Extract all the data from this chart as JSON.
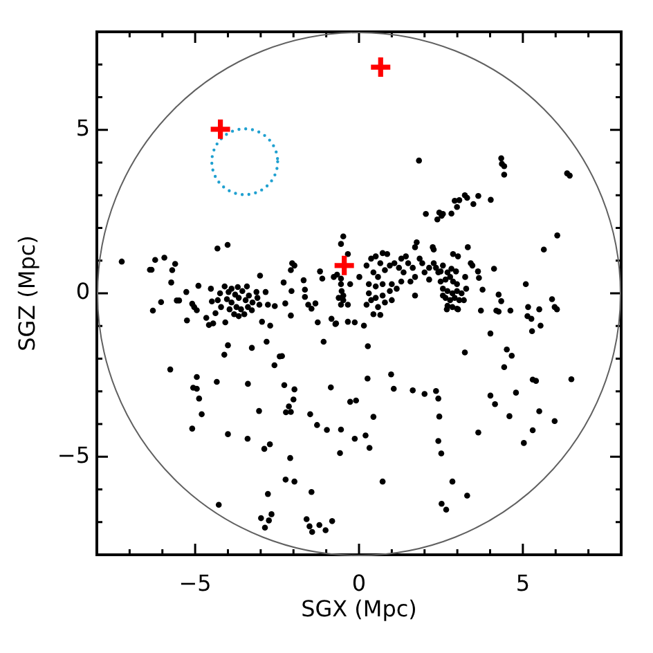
{
  "chart_data": {
    "type": "scatter",
    "xlabel": "SGX (Mpc)",
    "ylabel": "SGZ (Mpc)",
    "xlim": [
      -8,
      8
    ],
    "ylim": [
      -8,
      8
    ],
    "xticks": [
      {
        "value": -7,
        "label": null
      },
      {
        "value": -6,
        "label": null
      },
      -5,
      {
        "value": -4,
        "label": null
      },
      {
        "value": -3,
        "label": null
      },
      {
        "value": -2,
        "label": null
      },
      {
        "value": -1,
        "label": null
      },
      0,
      {
        "value": 1,
        "label": null
      },
      {
        "value": 2,
        "label": null
      },
      {
        "value": 3,
        "label": null
      },
      {
        "value": 4,
        "label": null
      },
      5,
      {
        "value": 6,
        "label": null
      },
      {
        "value": 7,
        "label": null
      }
    ],
    "yticks": [
      {
        "value": -7,
        "label": null
      },
      {
        "value": -6,
        "label": null
      },
      -5,
      {
        "value": -4,
        "label": null
      },
      {
        "value": -3,
        "label": null
      },
      {
        "value": -2,
        "label": null
      },
      {
        "value": -1,
        "label": null
      },
      0,
      {
        "value": 1,
        "label": null
      },
      {
        "value": 2,
        "label": null
      },
      {
        "value": 3,
        "label": null
      },
      {
        "value": 4,
        "label": null
      },
      5,
      {
        "value": 6,
        "label": null
      },
      {
        "value": 7,
        "label": null
      }
    ],
    "grid": false,
    "series": [
      {
        "type": "scatter",
        "color": "#000000",
        "marker": "circle",
        "x": [
          -7.24,
          -6.38,
          -6.33,
          -6.22,
          -5.94,
          -5.61,
          -5.7,
          -5.73,
          -6.29,
          -6.04,
          -5.56,
          -5.49,
          -5.25,
          -5.27,
          -4.9,
          -5.09,
          -5.03,
          -4.95,
          -4.66,
          -4.58,
          -4.45,
          -4.49,
          -4.52,
          -4.38,
          -4.32,
          -4.01,
          -4.08,
          -4.24,
          -4.1,
          -3.98,
          -3.89,
          -3.78,
          -3.67,
          -3.56,
          -3.46,
          -3.36,
          -3.25,
          -3.13,
          -3.04,
          -3.74,
          -3.6,
          -3.5,
          -3.39,
          -3.27,
          -3.89,
          -4.03,
          -3.7,
          -3.42,
          -3.1,
          -4.31,
          -4.21,
          -3.95,
          -3.81,
          -3.67,
          -3.02,
          -2.85,
          -2.78,
          -2.96,
          -2.71,
          -2.82,
          -2.57,
          -2.3,
          -2.25,
          -2.08,
          -2.06,
          -2.04,
          -1.97,
          -2.08,
          -1.69,
          -1.65,
          -1.65,
          -1.55,
          -1.45,
          -1.33,
          -1.26,
          -1.19,
          -1.12,
          -1.08,
          -0.84,
          -0.72,
          -0.77,
          -0.48,
          1.83,
          4.34,
          4.36,
          4.43,
          4.43,
          6.35,
          6.43,
          3.23,
          3.3,
          3.64,
          2.92,
          3.06,
          2.99,
          3.49,
          4.02,
          2.45,
          2.56,
          2.39,
          2.52,
          2.82,
          2.04,
          6.05,
          5.64,
          -0.55,
          -0.34,
          1.76,
          1.71,
          2.25,
          2.28,
          3.32,
          2.87,
          3.02,
          4.12,
          5.09,
          5.89,
          5.97,
          6.04,
          5.16,
          5.14,
          5.26,
          5.54,
          5.28,
          5.5,
          4.26,
          4.34,
          4.19,
          4.26,
          4.62,
          3.72,
          4.01,
          3.77,
          3.63,
          3.66,
          3.24,
          3.41,
          3.46,
          2.49,
          2.64,
          2.78,
          2.87,
          2.99,
          2.56,
          2.7,
          2.85,
          2.99,
          3.13,
          2.64,
          2.78,
          2.92,
          3.06,
          2.7,
          2.85,
          2.99,
          3.2,
          2.56,
          3.27,
          2.82,
          2.96,
          2.7,
          2.49,
          2.35,
          2.56,
          3.02,
          2.68,
          0.23,
          0.37,
          0.51,
          0.72,
          0.86,
          0.65,
          0.44,
          0.58,
          0.79,
          0.94,
          1.08,
          1.29,
          1.43,
          1.22,
          1.36,
          1.5,
          1.64,
          1.85,
          1.93,
          2,
          2.14,
          2.28,
          2.42,
          2.14,
          1.71,
          1.57,
          1.29,
          1,
          0.72,
          0.51,
          0.3,
          0.3,
          0.51,
          0.72,
          0.94,
          1.15,
          1,
          0.79,
          0.58,
          0.37,
          0.23,
          0.44,
          0.65,
          1.71,
          0.01,
          -0.27,
          -0.55,
          -0.48,
          -0.55,
          -0.34,
          -0.7,
          -0.34,
          -0.13,
          0.15,
          -0.67,
          -0.55,
          -0.53,
          -0.62,
          -0.48,
          0.27,
          3.23,
          4.51,
          4.66,
          4.43,
          5.3,
          5.4,
          6.48,
          4.01,
          4.15,
          4.79,
          5.5,
          5.97,
          4.59,
          5.3,
          5.03,
          3.64,
          2.85,
          3.3,
          2.52,
          2.66,
          0.98,
          1.06,
          1.64,
          2,
          2.35,
          2.42,
          2.45,
          2.42,
          2.51,
          0.26,
          0.44,
          -0.27,
          -0.09,
          -0.55,
          -0.13,
          0.2,
          0.32,
          -0.58,
          0.72,
          -0.86,
          -5.76,
          -4,
          -4.11,
          -3.27,
          -2.42,
          -2.35,
          -2.58,
          -4.95,
          -5.06,
          -4.95,
          -4.88,
          -4.8,
          -5.09,
          -4.34,
          -3.39,
          -2.28,
          -1.97,
          -2,
          -2.14,
          -2.23,
          -2.08,
          -3.05,
          -1.49,
          -1.28,
          -0.98,
          -4,
          -3.4,
          -2.89,
          -2.72,
          -2.1,
          -2.24,
          -1.97,
          -2.78,
          -1.45,
          -4.28,
          -2.99,
          -2.87,
          -2.75,
          -2.67,
          -1.6,
          -1.51,
          -1.43,
          -1.21,
          -1.02,
          -0.82
        ],
        "values": [
          0.97,
          0.72,
          0.72,
          1.02,
          1.09,
          0.9,
          0.71,
          0.33,
          -0.53,
          -0.27,
          -0.22,
          -0.22,
          -0.83,
          0.04,
          0.23,
          -0.32,
          -0.42,
          -0.52,
          -0.75,
          -0.97,
          -0.92,
          -0.25,
          0.14,
          -0.61,
          1.37,
          1.48,
          -0.89,
          0,
          0.21,
          0.04,
          0.14,
          -0.04,
          -0.14,
          0.07,
          -0.21,
          -0.07,
          -0.28,
          0.04,
          -0.35,
          -0.42,
          -0.49,
          -0.64,
          -0.42,
          -0.52,
          -0.28,
          -0.18,
          0.19,
          0.21,
          -0.14,
          -0.21,
          -0.42,
          -0.49,
          -0.64,
          -0.7,
          0.54,
          0.04,
          -0.35,
          -0.87,
          -0.99,
          -1.48,
          -0.39,
          0.33,
          -0.31,
          -0.68,
          0.07,
          0.92,
          0.85,
          0.71,
          0.4,
          0.11,
          -0.11,
          -0.35,
          -0.47,
          -0.31,
          -0.89,
          0.67,
          0.45,
          -1.48,
          -0.78,
          -0.94,
          0.5,
          1.74,
          4.06,
          4.13,
          3.96,
          3.89,
          3.63,
          3.67,
          3.6,
          3,
          2.92,
          2.98,
          2.83,
          2.85,
          2.64,
          2.73,
          2.86,
          2.47,
          2.43,
          2.26,
          2.37,
          2.44,
          2.43,
          1.77,
          1.34,
          1.51,
          1.2,
          1.56,
          1.41,
          1.41,
          1.34,
          1.41,
          1.2,
          1.13,
          0.75,
          0.28,
          -0.18,
          -0.42,
          -0.49,
          -0.42,
          -0.7,
          -0.78,
          -0.99,
          -1.16,
          -0.49,
          -0.04,
          -0.24,
          -0.53,
          -0.56,
          -0.53,
          -0.53,
          -1.23,
          0.11,
          0.67,
          0.47,
          0.5,
          0.92,
          0.85,
          0.36,
          0.42,
          0.5,
          0.36,
          0.28,
          0.14,
          0.07,
          0,
          0.07,
          0,
          -0.14,
          -0.21,
          -0.14,
          -0.21,
          -0.38,
          -0.42,
          -0.47,
          -0.21,
          -0.07,
          0.14,
          0.75,
          0.67,
          0.64,
          0.67,
          0.78,
          0.85,
          -0.49,
          -0.49,
          0.85,
          1.06,
          1.13,
          1.23,
          1.2,
          0.92,
          0.64,
          0.5,
          0.71,
          0.85,
          0.92,
          1.06,
          1.13,
          0.78,
          0.64,
          0.92,
          0.78,
          1.06,
          0.92,
          0.64,
          0.78,
          0.92,
          0.64,
          0.42,
          0.5,
          0.36,
          0.36,
          0.28,
          0.28,
          0.21,
          0.28,
          0,
          -0.14,
          -0.07,
          0.07,
          0.14,
          -0.21,
          -0.28,
          -0.42,
          -0.21,
          -0.35,
          -0.64,
          -0.66,
          -0.07,
          0.5,
          0.28,
          0.28,
          -0.07,
          -0.35,
          -0.35,
          -0.92,
          -0.87,
          -0.89,
          -0.99,
          0.57,
          0.45,
          0.07,
          -0.14,
          -0.21,
          -1.62,
          -1.81,
          -1.72,
          -1.91,
          -2.26,
          -2.64,
          -2.68,
          -2.63,
          -3.13,
          -3.39,
          -3.04,
          -3.61,
          -3.91,
          -3.76,
          -4.19,
          -4.58,
          -4.26,
          -5.76,
          -6.19,
          -6.44,
          -6.62,
          -2.48,
          -2.92,
          -2.97,
          -3.08,
          -2.99,
          -3.22,
          -3.77,
          -4.52,
          -4.9,
          -2.61,
          -3.78,
          -3.32,
          -3.28,
          -4.17,
          -4.45,
          -4.35,
          -4.73,
          -4.89,
          -5.76,
          -2.88,
          -2.33,
          -1.59,
          -1.88,
          -1.67,
          -1.93,
          -1.92,
          -2.2,
          -2.56,
          -2.89,
          -2.92,
          -3.22,
          -3.7,
          -4.14,
          -2.71,
          -2.77,
          -2.81,
          -2.94,
          -3.25,
          -3.46,
          -3.64,
          -3.63,
          -3.6,
          -3.7,
          -4.03,
          -4.18,
          -4.31,
          -4.45,
          -4.76,
          -4.62,
          -5.04,
          -5.7,
          -5.76,
          -6.14,
          -6.08,
          -6.47,
          -6.88,
          -7.17,
          -6.95,
          -6.76,
          -6.91,
          -7.13,
          -7.3,
          -7.09,
          -7.25,
          -6.97
        ]
      },
      {
        "type": "scatter",
        "color": "#ff0000",
        "marker": "cross",
        "x": [
          0.66,
          -4.23,
          -0.45
        ],
        "values": [
          6.92,
          5.02,
          0.85
        ]
      }
    ]
  }
}
